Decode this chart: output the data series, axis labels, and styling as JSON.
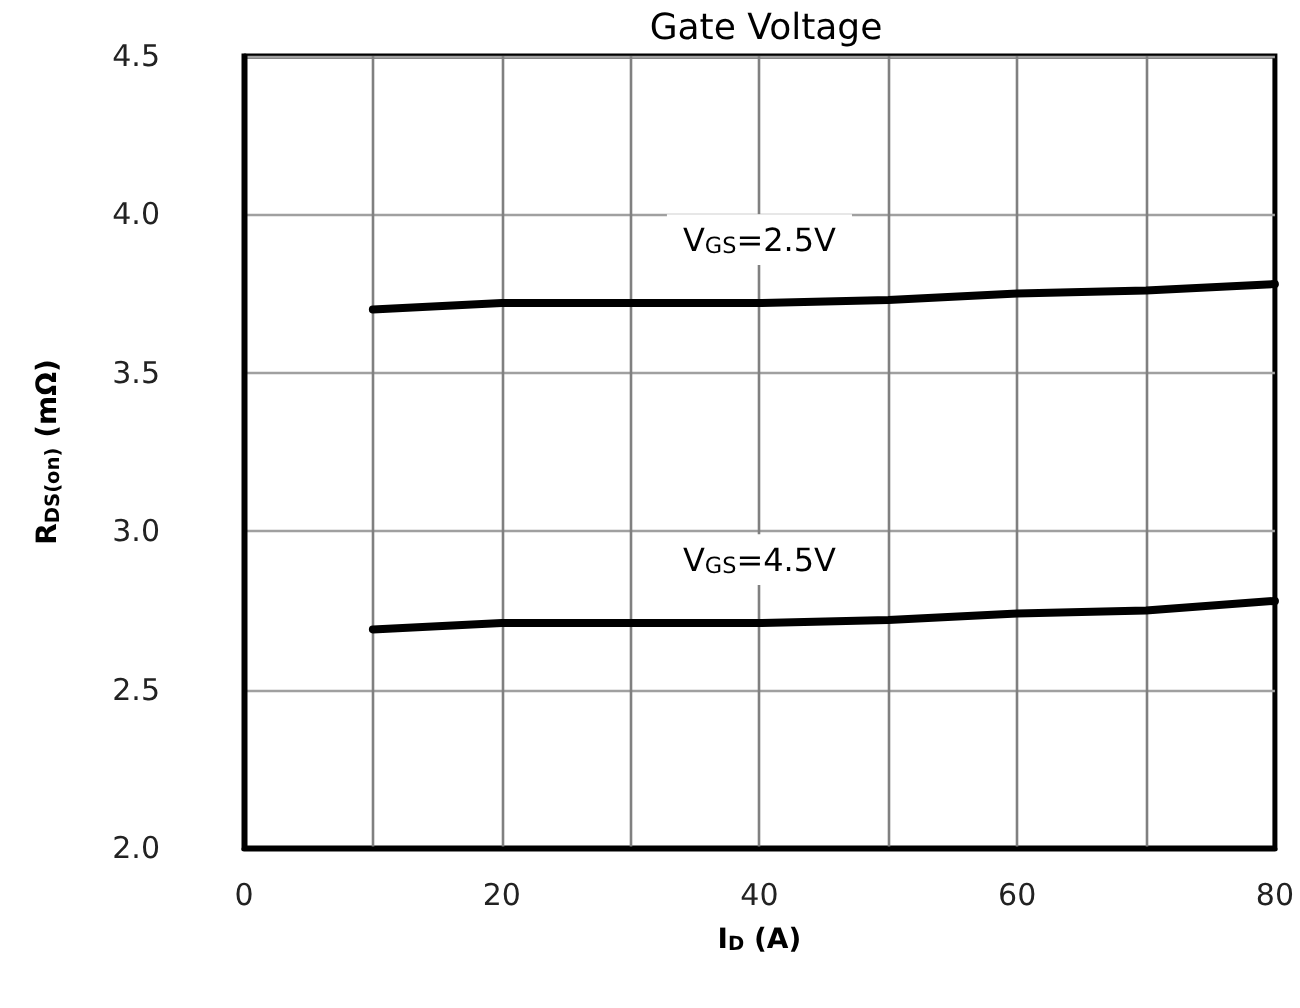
{
  "chart_data": {
    "type": "line",
    "title": "Gate Voltage",
    "xlabel": "I$_{D}$ (A)",
    "ylabel": "R$_{DS(on)}$ (mΩ)",
    "x": [
      10,
      20,
      30,
      40,
      50,
      60,
      70,
      80
    ],
    "series": [
      {
        "name": "V$_{GS}$=2.5V",
        "color": "#000000",
        "values": [
          3.7,
          3.72,
          3.72,
          3.72,
          3.73,
          3.75,
          3.76,
          3.78
        ]
      },
      {
        "name": "V$_{GS}$=4.5V",
        "color": "#000000",
        "values": [
          2.69,
          2.71,
          2.71,
          2.71,
          2.72,
          2.74,
          2.75,
          2.78
        ]
      }
    ],
    "xlim": [
      0,
      80
    ],
    "xticks": [
      0,
      {
        "value": 10,
        "label": null
      },
      20,
      {
        "value": 30,
        "label": null
      },
      40,
      {
        "value": 50,
        "label": null
      },
      60,
      {
        "value": 70,
        "label": null
      },
      80
    ],
    "ylim": [
      2.0,
      4.5
    ],
    "yticks": [
      {
        "value": 2.0,
        "label": "2.0"
      },
      2.5,
      {
        "value": 3.0,
        "label": "3.0"
      },
      3.5,
      {
        "value": 4.0,
        "label": "4.0"
      },
      4.5
    ],
    "grid": true,
    "legend": false,
    "marker": "none",
    "line_style": "solid"
  }
}
